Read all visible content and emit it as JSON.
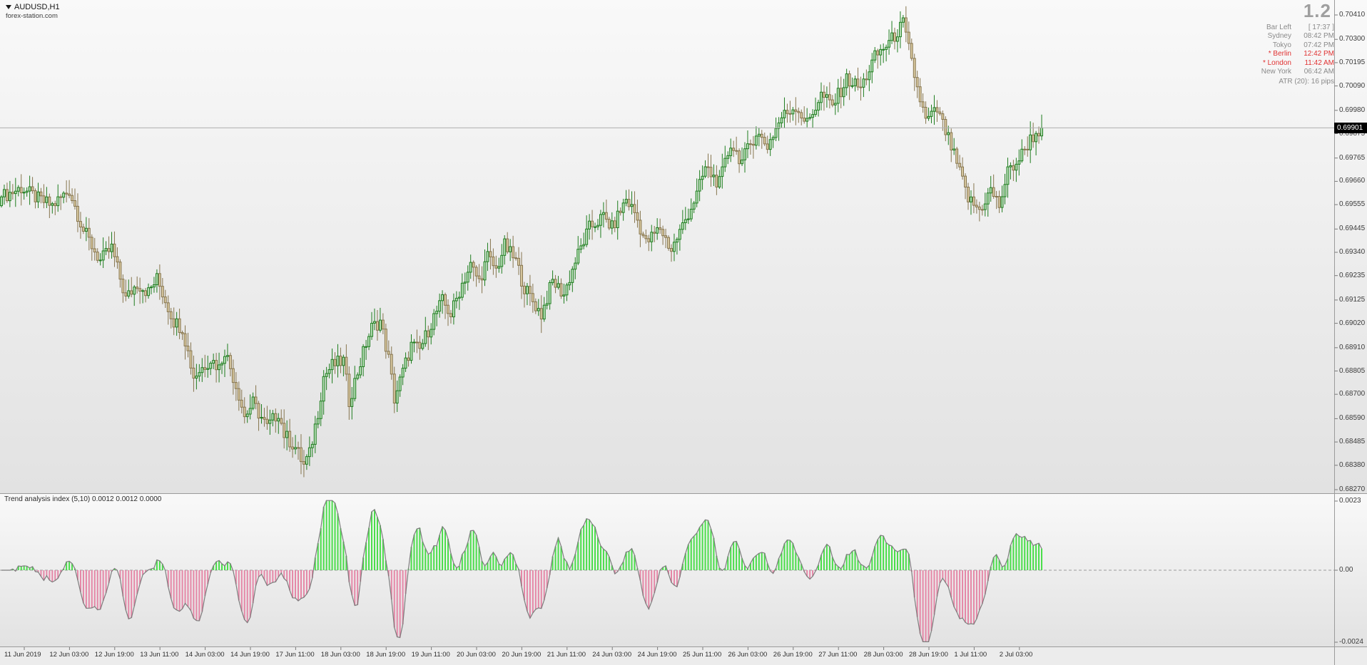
{
  "header": {
    "symbol": "AUDUSD,H1",
    "site": "forex-station.com"
  },
  "spread": "1.2",
  "clock_panel": {
    "rows": [
      {
        "label": "Bar Left",
        "value": "[ 17:37 ]",
        "alert": false
      },
      {
        "label": "Sydney",
        "value": "08:42 PM",
        "alert": false
      },
      {
        "label": "Tokyo",
        "value": "07:42 PM",
        "alert": false
      },
      {
        "label": "* Berlin",
        "value": "12:42 PM",
        "alert": true
      },
      {
        "label": "* London",
        "value": "11:42 AM",
        "alert": true
      },
      {
        "label": "New York",
        "value": "06:42 AM",
        "alert": false
      }
    ],
    "atr": "ATR (20): 16 pips"
  },
  "chart_data": {
    "type": "candlestick",
    "title": "AUDUSD H1 candlestick chart with Trend analysis index (5,10) histogram",
    "x_labels": [
      "11 Jun 2019",
      "12 Jun 03:00",
      "12 Jun 19:00",
      "13 Jun 11:00",
      "14 Jun 03:00",
      "14 Jun 19:00",
      "17 Jun 11:00",
      "18 Jun 03:00",
      "18 Jun 19:00",
      "19 Jun 11:00",
      "20 Jun 03:00",
      "20 Jun 19:00",
      "21 Jun 11:00",
      "24 Jun 03:00",
      "24 Jun 19:00",
      "25 Jun 11:00",
      "26 Jun 03:00",
      "26 Jun 19:00",
      "27 Jun 11:00",
      "28 Jun 03:00",
      "28 Jun 19:00",
      "1 Jul 11:00",
      "2 Jul 03:00"
    ],
    "main_pane": {
      "ylim": [
        0.6827,
        0.7041
      ],
      "y_tick_labels": [
        "0.70410",
        "0.70300",
        "0.70195",
        "0.70090",
        "0.69980",
        "0.69875",
        "0.69765",
        "0.69660",
        "0.69555",
        "0.69445",
        "0.69340",
        "0.69235",
        "0.69125",
        "0.69020",
        "0.68910",
        "0.68805",
        "0.68700",
        "0.68590",
        "0.68485",
        "0.68380",
        "0.68270"
      ],
      "current_price": "0.69901",
      "bars_total": 369,
      "price_keypoints": [
        [
          0,
          0.6959
        ],
        [
          7,
          0.6963
        ],
        [
          13,
          0.6958
        ],
        [
          18,
          0.6955
        ],
        [
          24,
          0.6962
        ],
        [
          29,
          0.6944
        ],
        [
          35,
          0.693
        ],
        [
          39,
          0.6936
        ],
        [
          44,
          0.6913
        ],
        [
          48,
          0.692
        ],
        [
          52,
          0.6916
        ],
        [
          55,
          0.6922
        ],
        [
          61,
          0.6903
        ],
        [
          64,
          0.69
        ],
        [
          68,
          0.6878
        ],
        [
          74,
          0.6886
        ],
        [
          77,
          0.6882
        ],
        [
          79,
          0.689
        ],
        [
          84,
          0.687
        ],
        [
          86,
          0.686
        ],
        [
          89,
          0.6866
        ],
        [
          94,
          0.6855
        ],
        [
          98,
          0.6862
        ],
        [
          100,
          0.6852
        ],
        [
          104,
          0.6846
        ],
        [
          107,
          0.6838
        ],
        [
          109,
          0.6843
        ],
        [
          112,
          0.6862
        ],
        [
          114,
          0.6878
        ],
        [
          117,
          0.6883
        ],
        [
          121,
          0.6885
        ],
        [
          123,
          0.6867
        ],
        [
          126,
          0.688
        ],
        [
          129,
          0.6893
        ],
        [
          131,
          0.69
        ],
        [
          134,
          0.6903
        ],
        [
          137,
          0.6886
        ],
        [
          139,
          0.6868
        ],
        [
          142,
          0.688
        ],
        [
          145,
          0.6892
        ],
        [
          148,
          0.689
        ],
        [
          153,
          0.6905
        ],
        [
          156,
          0.6912
        ],
        [
          159,
          0.6906
        ],
        [
          163,
          0.692
        ],
        [
          166,
          0.6928
        ],
        [
          169,
          0.6921
        ],
        [
          172,
          0.6932
        ],
        [
          175,
          0.6926
        ],
        [
          178,
          0.6937
        ],
        [
          182,
          0.693
        ],
        [
          185,
          0.6918
        ],
        [
          189,
          0.691
        ],
        [
          191,
          0.6906
        ],
        [
          195,
          0.6921
        ],
        [
          199,
          0.6915
        ],
        [
          203,
          0.693
        ],
        [
          208,
          0.6945
        ],
        [
          213,
          0.695
        ],
        [
          216,
          0.6945
        ],
        [
          221,
          0.6958
        ],
        [
          224,
          0.6952
        ],
        [
          228,
          0.6938
        ],
        [
          233,
          0.6945
        ],
        [
          237,
          0.6935
        ],
        [
          241,
          0.6946
        ],
        [
          246,
          0.696
        ],
        [
          249,
          0.6972
        ],
        [
          254,
          0.6965
        ],
        [
          258,
          0.6983
        ],
        [
          262,
          0.6975
        ],
        [
          267,
          0.6988
        ],
        [
          271,
          0.6982
        ],
        [
          276,
          0.6995
        ],
        [
          281,
          0.7
        ],
        [
          285,
          0.6992
        ],
        [
          290,
          0.7005
        ],
        [
          294,
          0.7
        ],
        [
          299,
          0.7012
        ],
        [
          304,
          0.7008
        ],
        [
          309,
          0.7022
        ],
        [
          315,
          0.703
        ],
        [
          319,
          0.7037
        ],
        [
          324,
          0.7008
        ],
        [
          327,
          0.6993
        ],
        [
          331,
          0.6998
        ],
        [
          335,
          0.6985
        ],
        [
          339,
          0.697
        ],
        [
          342,
          0.6958
        ],
        [
          346,
          0.6953
        ],
        [
          350,
          0.6962
        ],
        [
          353,
          0.6955
        ],
        [
          356,
          0.697
        ],
        [
          360,
          0.6976
        ],
        [
          364,
          0.6985
        ],
        [
          368,
          0.69901
        ]
      ]
    },
    "indicator_pane": {
      "title": "Trend analysis index (5,10) 0.0012 0.0012 0.0000",
      "name": "Trend analysis index",
      "periods": [
        5,
        10
      ],
      "display_values": [
        "0.0012",
        "0.0012",
        "0.0000"
      ],
      "y_tick_labels": [
        "0.0023",
        "0.00",
        "-0.0024"
      ],
      "y_range": [
        -0.00245,
        0.00235
      ]
    }
  },
  "colors": {
    "bull_stroke": "#1e7d1e",
    "bull_fill": "#b9e0b9",
    "bear_stroke": "#86754e",
    "bear_fill": "#d8c8a0",
    "hist_up": "#49dd49",
    "hist_down": "#e586a6",
    "hist_outline": "#7d7d7d",
    "price_line": "#b0b0b0",
    "tag_bg": "#000000",
    "tag_text": "#ffffff",
    "session_alert": "#e03232",
    "axis_text": "#3c3c3c",
    "panel_text": "#8a8a8a"
  }
}
